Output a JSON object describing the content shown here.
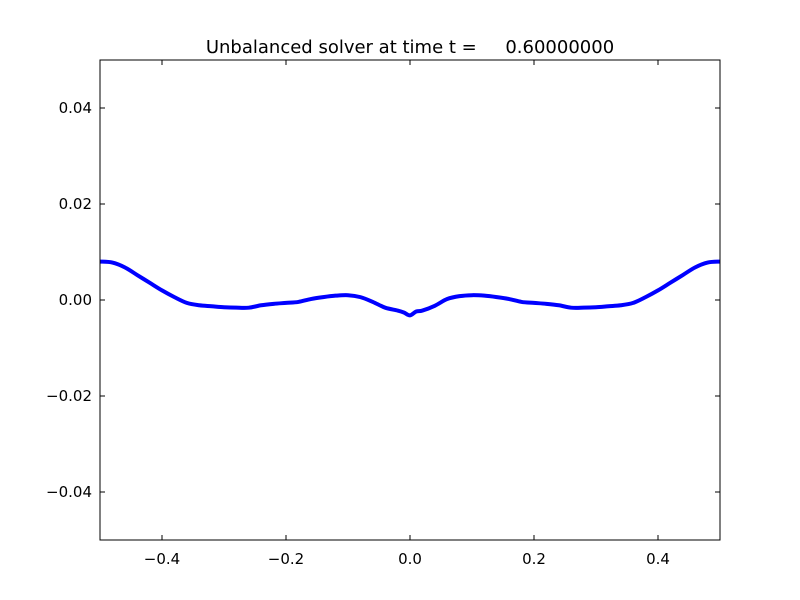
{
  "chart_data": {
    "type": "line",
    "title": "Unbalanced solver at time t =     0.60000000",
    "xlabel": "",
    "ylabel": "",
    "xlim": [
      -0.5,
      0.5
    ],
    "ylim": [
      -0.05,
      0.05
    ],
    "xticks": [
      -0.4,
      -0.2,
      0.0,
      0.2,
      0.4
    ],
    "xtick_labels": [
      "−0.4",
      "−0.2",
      "0.0",
      "0.2",
      "0.4"
    ],
    "yticks": [
      0.04,
      0.02,
      0.0,
      -0.02,
      -0.04
    ],
    "ytick_labels": [
      "0.04",
      "0.02",
      "0.00",
      "−0.02",
      "−0.04"
    ],
    "grid": false,
    "series": [
      {
        "color": "#0000ff",
        "x": [
          -0.5,
          -0.48,
          -0.46,
          -0.44,
          -0.42,
          -0.4,
          -0.38,
          -0.36,
          -0.34,
          -0.32,
          -0.3,
          -0.28,
          -0.26,
          -0.24,
          -0.22,
          -0.2,
          -0.18,
          -0.16,
          -0.14,
          -0.12,
          -0.1,
          -0.08,
          -0.06,
          -0.04,
          -0.02,
          -0.01,
          0.0,
          0.01,
          0.02,
          0.04,
          0.06,
          0.08,
          0.1,
          0.12,
          0.14,
          0.16,
          0.18,
          0.2,
          0.22,
          0.24,
          0.26,
          0.28,
          0.3,
          0.32,
          0.34,
          0.36,
          0.38,
          0.4,
          0.42,
          0.44,
          0.46,
          0.48,
          0.5
        ],
        "y": [
          0.008,
          0.0078,
          0.0068,
          0.0052,
          0.0036,
          0.002,
          0.0006,
          -0.0006,
          -0.0011,
          -0.0013,
          -0.0015,
          -0.0016,
          -0.0016,
          -0.0011,
          -0.0008,
          -0.0006,
          -0.0004,
          0.0002,
          0.0006,
          0.0009,
          0.001,
          0.0006,
          -0.0004,
          -0.0016,
          -0.0022,
          -0.0026,
          -0.0032,
          -0.0024,
          -0.0022,
          -0.0012,
          0.0002,
          0.0008,
          0.001,
          0.0009,
          0.0006,
          0.0002,
          -0.0004,
          -0.0006,
          -0.0008,
          -0.0011,
          -0.0016,
          -0.0016,
          -0.0015,
          -0.0013,
          -0.0011,
          -0.0006,
          0.0006,
          0.002,
          0.0036,
          0.0052,
          0.0068,
          0.0078,
          0.008
        ]
      }
    ]
  }
}
